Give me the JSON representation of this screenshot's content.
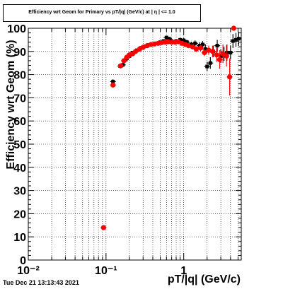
{
  "title": "Efficiency wrt Geom for Primary vs pT/|q| (GeV/c) at | η | <= 1.0",
  "timestamp": "Tue Dec 21 13:13:43 2021",
  "chart_data": {
    "type": "scatter",
    "title": "Efficiency wrt Geom for Primary vs pT/|q| (GeV/c) at | η | <= 1.0",
    "xlabel": "pT/|q| (GeV/c)",
    "ylabel": "Efficiency wrt Geom (%)",
    "xscale": "log",
    "xlim": [
      0.01,
      5.5
    ],
    "ylim": [
      0,
      100
    ],
    "grid": true,
    "x_tick_labels": [
      "10⁻²",
      "10⁻¹",
      "1"
    ],
    "y_tick_labels": [
      "0",
      "10",
      "20",
      "30",
      "40",
      "50",
      "60",
      "70",
      "80",
      "90",
      "100"
    ],
    "series": [
      {
        "color": "#000000",
        "marker": "cross",
        "points": [
          {
            "x": 0.093,
            "y": 14.0,
            "err": 0.5
          },
          {
            "x": 0.123,
            "y": 77.0,
            "err": 1.0
          },
          {
            "x": 0.152,
            "y": 83.7,
            "err": 1.0
          },
          {
            "x": 0.165,
            "y": 84.2,
            "err": 1.0
          },
          {
            "x": 0.18,
            "y": 86.5,
            "err": 0.8
          },
          {
            "x": 0.2,
            "y": 88.0,
            "err": 0.8
          },
          {
            "x": 0.22,
            "y": 89.5,
            "err": 0.7
          },
          {
            "x": 0.25,
            "y": 90.5,
            "err": 0.6
          },
          {
            "x": 0.28,
            "y": 91.5,
            "err": 0.5
          },
          {
            "x": 0.32,
            "y": 92.2,
            "err": 0.5
          },
          {
            "x": 0.36,
            "y": 92.8,
            "err": 0.5
          },
          {
            "x": 0.4,
            "y": 93.0,
            "err": 0.5
          },
          {
            "x": 0.45,
            "y": 93.5,
            "err": 0.5
          },
          {
            "x": 0.5,
            "y": 94.0,
            "err": 0.6
          },
          {
            "x": 0.55,
            "y": 94.5,
            "err": 0.7
          },
          {
            "x": 0.6,
            "y": 96.0,
            "err": 0.8
          },
          {
            "x": 0.65,
            "y": 95.5,
            "err": 0.8
          },
          {
            "x": 0.7,
            "y": 94.5,
            "err": 0.8
          },
          {
            "x": 0.8,
            "y": 94.5,
            "err": 0.8
          },
          {
            "x": 0.9,
            "y": 95.0,
            "err": 0.9
          },
          {
            "x": 1.0,
            "y": 94.8,
            "err": 1.0
          },
          {
            "x": 1.1,
            "y": 94.0,
            "err": 1.0
          },
          {
            "x": 1.25,
            "y": 93.0,
            "err": 1.2
          },
          {
            "x": 1.4,
            "y": 93.5,
            "err": 1.3
          },
          {
            "x": 1.6,
            "y": 92.5,
            "err": 1.5
          },
          {
            "x": 1.75,
            "y": 93.0,
            "err": 1.5
          },
          {
            "x": 1.9,
            "y": 91.0,
            "err": 2.0
          },
          {
            "x": 2.0,
            "y": 83.5,
            "err": 2.0
          },
          {
            "x": 2.2,
            "y": 85.0,
            "err": 2.5
          },
          {
            "x": 2.4,
            "y": 90.0,
            "err": 2.5
          },
          {
            "x": 2.7,
            "y": 92.5,
            "err": 2.5
          },
          {
            "x": 3.0,
            "y": 88.0,
            "err": 3.0
          },
          {
            "x": 3.3,
            "y": 89.0,
            "err": 3.0
          },
          {
            "x": 3.6,
            "y": 89.5,
            "err": 3.5
          },
          {
            "x": 4.0,
            "y": 89.5,
            "err": 3.0
          },
          {
            "x": 4.3,
            "y": 94.5,
            "err": 3.0
          },
          {
            "x": 4.7,
            "y": 95.0,
            "err": 3.0
          },
          {
            "x": 5.1,
            "y": 95.5,
            "err": 3.0
          }
        ]
      },
      {
        "color": "#ff0000",
        "marker": "circle",
        "points": [
          {
            "x": 0.093,
            "y": 14.0,
            "err": 0.5
          },
          {
            "x": 0.123,
            "y": 75.5,
            "err": 1.0
          },
          {
            "x": 0.155,
            "y": 83.8,
            "err": 1.0
          },
          {
            "x": 0.17,
            "y": 86.0,
            "err": 0.8
          },
          {
            "x": 0.185,
            "y": 87.5,
            "err": 0.8
          },
          {
            "x": 0.2,
            "y": 88.5,
            "err": 0.7
          },
          {
            "x": 0.22,
            "y": 89.0,
            "err": 0.7
          },
          {
            "x": 0.24,
            "y": 90.0,
            "err": 0.6
          },
          {
            "x": 0.27,
            "y": 91.0,
            "err": 0.6
          },
          {
            "x": 0.3,
            "y": 91.8,
            "err": 0.5
          },
          {
            "x": 0.34,
            "y": 92.5,
            "err": 0.5
          },
          {
            "x": 0.38,
            "y": 93.0,
            "err": 0.5
          },
          {
            "x": 0.42,
            "y": 93.2,
            "err": 0.5
          },
          {
            "x": 0.47,
            "y": 93.5,
            "err": 0.5
          },
          {
            "x": 0.52,
            "y": 93.8,
            "err": 0.6
          },
          {
            "x": 0.58,
            "y": 94.0,
            "err": 0.7
          },
          {
            "x": 0.63,
            "y": 94.2,
            "err": 0.7
          },
          {
            "x": 0.7,
            "y": 94.0,
            "err": 0.8
          },
          {
            "x": 0.78,
            "y": 94.0,
            "err": 0.8
          },
          {
            "x": 0.85,
            "y": 94.2,
            "err": 0.8
          },
          {
            "x": 0.95,
            "y": 93.5,
            "err": 0.9
          },
          {
            "x": 1.05,
            "y": 93.0,
            "err": 1.0
          },
          {
            "x": 1.15,
            "y": 92.5,
            "err": 1.0
          },
          {
            "x": 1.3,
            "y": 92.0,
            "err": 1.1
          },
          {
            "x": 1.45,
            "y": 91.0,
            "err": 1.2
          },
          {
            "x": 1.65,
            "y": 91.5,
            "err": 1.3
          },
          {
            "x": 1.85,
            "y": 89.5,
            "err": 1.5
          },
          {
            "x": 2.1,
            "y": 90.5,
            "err": 2.0
          },
          {
            "x": 2.35,
            "y": 90.0,
            "err": 2.5
          },
          {
            "x": 2.65,
            "y": 88.5,
            "err": 3.0
          },
          {
            "x": 2.9,
            "y": 86.5,
            "err": 4.0
          },
          {
            "x": 3.2,
            "y": 89.0,
            "err": 4.0
          },
          {
            "x": 3.55,
            "y": 88.0,
            "err": 4.5
          },
          {
            "x": 3.9,
            "y": 79.0,
            "err": 8.0
          },
          {
            "x": 4.4,
            "y": 100.0,
            "err": 0.5
          }
        ]
      }
    ]
  }
}
